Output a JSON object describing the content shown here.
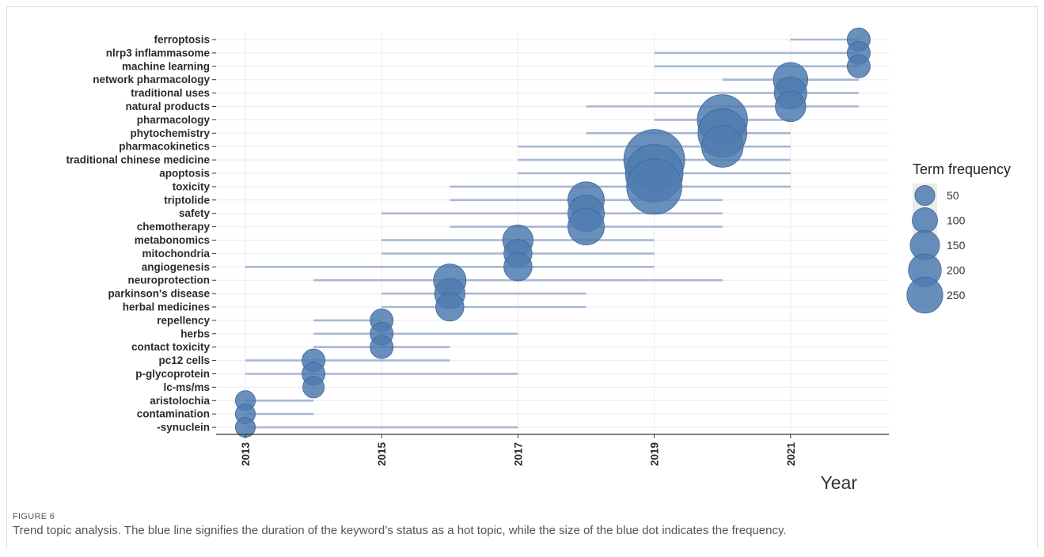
{
  "figure": {
    "label": "FIGURE 6",
    "caption": "Trend topic analysis. The blue line signifies the duration of the keyword’s status as a hot topic, while the size of the blue dot indicates the frequency."
  },
  "chart_data": {
    "type": "scatter",
    "xlabel": "Year",
    "ylabel": "",
    "xlim": [
      2012.5,
      2022.4
    ],
    "xticks": [
      2013,
      2015,
      2017,
      2019,
      2021
    ],
    "grid": true,
    "legend_position": "right",
    "legend": {
      "title": "Term frequency",
      "sizes": [
        50,
        100,
        150,
        200,
        250
      ]
    },
    "colors": {
      "point": "#4f7bb0",
      "line": "#a9b7d4",
      "grid": "#ebebeb",
      "axis": "#333333"
    },
    "terms": [
      {
        "term": "ferroptosis",
        "start": 2021,
        "end": 2022,
        "peak": 2022,
        "freq": 40
      },
      {
        "term": "nlrp3 inflammasome",
        "start": 2019,
        "end": 2022,
        "peak": 2022,
        "freq": 40
      },
      {
        "term": "machine learning",
        "start": 2019,
        "end": 2022,
        "peak": 2022,
        "freq": 40
      },
      {
        "term": "network pharmacology",
        "start": 2020,
        "end": 2022,
        "peak": 2021,
        "freq": 90
      },
      {
        "term": "traditional uses",
        "start": 2019,
        "end": 2022,
        "peak": 2021,
        "freq": 80
      },
      {
        "term": "natural products",
        "start": 2018,
        "end": 2022,
        "peak": 2021,
        "freq": 70
      },
      {
        "term": "pharmacology",
        "start": 2019,
        "end": 2021,
        "peak": 2020,
        "freq": 190
      },
      {
        "term": "phytochemistry",
        "start": 2018,
        "end": 2021,
        "peak": 2020,
        "freq": 180
      },
      {
        "term": "pharmacokinetics",
        "start": 2017,
        "end": 2021,
        "peak": 2020,
        "freq": 130
      },
      {
        "term": "traditional chinese medicine",
        "start": 2017,
        "end": 2021,
        "peak": 2019,
        "freq": 280
      },
      {
        "term": "apoptosis",
        "start": 2017,
        "end": 2021,
        "peak": 2019,
        "freq": 250
      },
      {
        "term": "toxicity",
        "start": 2016,
        "end": 2021,
        "peak": 2019,
        "freq": 230
      },
      {
        "term": "triptolide",
        "start": 2016,
        "end": 2020,
        "peak": 2018,
        "freq": 100
      },
      {
        "term": "safety",
        "start": 2015,
        "end": 2020,
        "peak": 2018,
        "freq": 100
      },
      {
        "term": "chemotherapy",
        "start": 2016,
        "end": 2020,
        "peak": 2018,
        "freq": 100
      },
      {
        "term": "metabonomics",
        "start": 2015,
        "end": 2019,
        "peak": 2017,
        "freq": 70
      },
      {
        "term": "mitochondria",
        "start": 2015,
        "end": 2019,
        "peak": 2017,
        "freq": 60
      },
      {
        "term": "angiogenesis",
        "start": 2013,
        "end": 2019,
        "peak": 2017,
        "freq": 60
      },
      {
        "term": "neuroprotection",
        "start": 2014,
        "end": 2020,
        "peak": 2016,
        "freq": 80
      },
      {
        "term": "parkinson's disease",
        "start": 2015,
        "end": 2018,
        "peak": 2016,
        "freq": 70
      },
      {
        "term": "herbal medicines",
        "start": 2015,
        "end": 2018,
        "peak": 2016,
        "freq": 60
      },
      {
        "term": "repellency",
        "start": 2014,
        "end": 2015,
        "peak": 2015,
        "freq": 40
      },
      {
        "term": "herbs",
        "start": 2014,
        "end": 2017,
        "peak": 2015,
        "freq": 40
      },
      {
        "term": "contact toxicity",
        "start": 2014,
        "end": 2016,
        "peak": 2015,
        "freq": 40
      },
      {
        "term": "pc12 cells",
        "start": 2013,
        "end": 2016,
        "peak": 2014,
        "freq": 40
      },
      {
        "term": "p-glycoprotein",
        "start": 2013,
        "end": 2017,
        "peak": 2014,
        "freq": 40
      },
      {
        "term": "lc-ms/ms",
        "start": 2014,
        "end": 2014,
        "peak": 2014,
        "freq": 35
      },
      {
        "term": "aristolochia",
        "start": 2013,
        "end": 2014,
        "peak": 2013,
        "freq": 30
      },
      {
        "term": "contamination",
        "start": 2013,
        "end": 2014,
        "peak": 2013,
        "freq": 30
      },
      {
        "term": "-synuclein",
        "start": 2013,
        "end": 2017,
        "peak": 2013,
        "freq": 30
      }
    ]
  }
}
